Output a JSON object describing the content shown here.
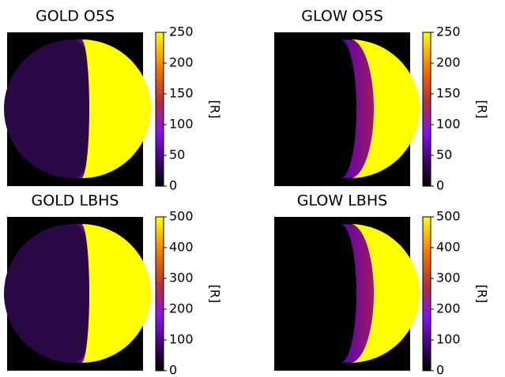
{
  "chart_data": [
    {
      "type": "image",
      "title": "GOLD O5S",
      "colorbar_label": "[R]",
      "clim": [
        0,
        250
      ],
      "cticks": [
        0,
        50,
        100,
        150,
        200,
        250
      ]
    },
    {
      "type": "image",
      "title": "GLOW O5S",
      "colorbar_label": "[R]",
      "clim": [
        0,
        250
      ],
      "cticks": [
        0,
        50,
        100,
        150,
        200,
        250
      ]
    },
    {
      "type": "image",
      "title": "GOLD LBHS",
      "colorbar_label": "[R]",
      "clim": [
        0,
        500
      ],
      "cticks": [
        0,
        100,
        200,
        300,
        400,
        500
      ]
    },
    {
      "type": "image",
      "title": "GLOW LBHS",
      "colorbar_label": "[R]",
      "clim": [
        0,
        500
      ],
      "cticks": [
        0,
        100,
        200,
        300,
        400,
        500
      ]
    }
  ]
}
